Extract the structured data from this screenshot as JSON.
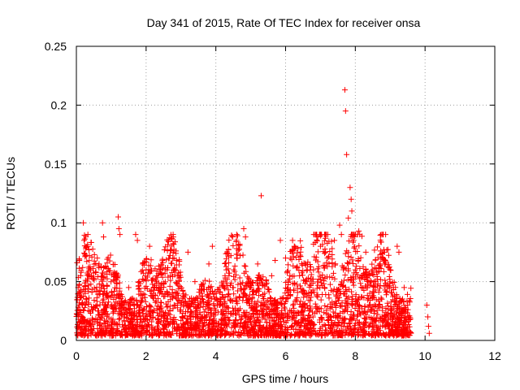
{
  "chart_data": {
    "type": "scatter",
    "title": "Day 341 of 2015, Rate Of TEC Index for receiver onsa",
    "xlabel": "GPS time / hours",
    "ylabel": "ROTI / TECUs",
    "xlim": [
      0,
      12
    ],
    "ylim": [
      0,
      0.25
    ],
    "x_ticks": [
      0,
      2,
      4,
      6,
      8,
      10,
      12
    ],
    "y_ticks": [
      0,
      0.05,
      0.1,
      0.15,
      0.2,
      0.25
    ],
    "x_tick_labels": [
      "0",
      "2",
      "4",
      "6",
      "8",
      "10",
      "12"
    ],
    "y_tick_labels": [
      "0",
      "0.05",
      "0.1",
      "0.15",
      "0.2",
      "0.25"
    ],
    "grid": true,
    "marker": "+",
    "color": "#ff0000",
    "series": [
      {
        "name": "ROTI",
        "points": [
          [
            0.02,
            0.066
          ],
          [
            0.05,
            0.045
          ],
          [
            0.08,
            0.03
          ],
          [
            0.1,
            0.012
          ],
          [
            0.12,
            0.055
          ],
          [
            0.15,
            0.02
          ],
          [
            0.18,
            0.062
          ],
          [
            0.2,
            0.1
          ],
          [
            0.22,
            0.085
          ],
          [
            0.25,
            0.04
          ],
          [
            0.3,
            0.015
          ],
          [
            0.35,
            0.008
          ],
          [
            0.5,
            0.01
          ],
          [
            0.6,
            0.07
          ],
          [
            0.65,
            0.065
          ],
          [
            0.7,
            0.02
          ],
          [
            0.75,
            0.1
          ],
          [
            0.78,
            0.088
          ],
          [
            0.8,
            0.025
          ],
          [
            0.9,
            0.012
          ],
          [
            1.0,
            0.018
          ],
          [
            1.1,
            0.015
          ],
          [
            1.2,
            0.105
          ],
          [
            1.22,
            0.095
          ],
          [
            1.25,
            0.09
          ],
          [
            1.3,
            0.03
          ],
          [
            1.4,
            0.01
          ],
          [
            1.5,
            0.045
          ],
          [
            1.7,
            0.09
          ],
          [
            1.75,
            0.085
          ],
          [
            1.8,
            0.05
          ],
          [
            1.9,
            0.065
          ],
          [
            2.0,
            0.06
          ],
          [
            2.1,
            0.08
          ],
          [
            2.2,
            0.04
          ],
          [
            2.3,
            0.055
          ],
          [
            2.5,
            0.02
          ],
          [
            2.6,
            0.06
          ],
          [
            2.8,
            0.07
          ],
          [
            3.0,
            0.03
          ],
          [
            3.2,
            0.075
          ],
          [
            3.4,
            0.05
          ],
          [
            3.6,
            0.04
          ],
          [
            3.8,
            0.065
          ],
          [
            3.9,
            0.08
          ],
          [
            4.1,
            0.03
          ],
          [
            4.3,
            0.06
          ],
          [
            4.5,
            0.045
          ],
          [
            4.6,
            0.07
          ],
          [
            4.8,
            0.095
          ],
          [
            4.85,
            0.088
          ],
          [
            5.0,
            0.05
          ],
          [
            5.2,
            0.065
          ],
          [
            5.3,
            0.123
          ],
          [
            5.4,
            0.04
          ],
          [
            5.6,
            0.055
          ],
          [
            5.7,
            0.068
          ],
          [
            5.85,
            0.085
          ],
          [
            6.0,
            0.07
          ],
          [
            6.2,
            0.085
          ],
          [
            6.25,
            0.08
          ],
          [
            6.4,
            0.055
          ],
          [
            6.6,
            0.05
          ],
          [
            6.8,
            0.06
          ],
          [
            7.0,
            0.08
          ],
          [
            7.2,
            0.07
          ],
          [
            7.4,
            0.085
          ],
          [
            7.55,
            0.098
          ],
          [
            7.6,
            0.09
          ],
          [
            7.7,
            0.213
          ],
          [
            7.72,
            0.195
          ],
          [
            7.75,
            0.158
          ],
          [
            7.8,
            0.104
          ],
          [
            7.85,
            0.13
          ],
          [
            7.88,
            0.12
          ],
          [
            7.9,
            0.11
          ],
          [
            7.95,
            0.085
          ],
          [
            8.0,
            0.06
          ],
          [
            8.1,
            0.093
          ],
          [
            8.2,
            0.055
          ],
          [
            8.3,
            0.075
          ],
          [
            8.5,
            0.06
          ],
          [
            8.7,
            0.065
          ],
          [
            8.8,
            0.07
          ],
          [
            9.0,
            0.06
          ],
          [
            9.2,
            0.08
          ],
          [
            9.25,
            0.075
          ],
          [
            9.4,
            0.045
          ],
          [
            9.5,
            0.03
          ],
          [
            10.05,
            0.03
          ],
          [
            10.08,
            0.02
          ],
          [
            10.1,
            0.012
          ],
          [
            10.12,
            0.006
          ]
        ]
      }
    ]
  }
}
